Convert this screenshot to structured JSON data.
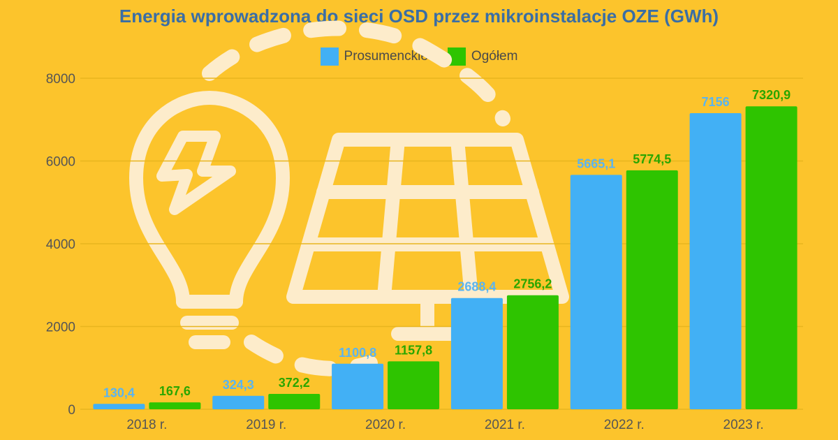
{
  "chart_data": {
    "type": "bar",
    "title": "Energia wprowadzona do sieci OSD przez mikroinstalacje OZE (GWh)",
    "categories": [
      "2018 r.",
      "2019 r.",
      "2020 r.",
      "2021 r.",
      "2022 r.",
      "2023 r."
    ],
    "series": [
      {
        "name": "Prosumenckie",
        "color": "#42b0f5",
        "label_color": "#5ab4f0",
        "values": [
          130.4,
          324.3,
          1100.8,
          2688.4,
          5665.1,
          7156
        ],
        "labels": [
          "130,4",
          "324,3",
          "1100,8",
          "2688,4",
          "5665,1",
          "7156"
        ]
      },
      {
        "name": "Ogółem",
        "color": "#2ec400",
        "label_color": "#2aa600",
        "values": [
          167.6,
          372.2,
          1157.8,
          2756.2,
          5774.5,
          7320.9
        ],
        "labels": [
          "167,6",
          "372,2",
          "1157,8",
          "2756,2",
          "5774,5",
          "7320,9"
        ]
      }
    ],
    "y_ticks": [
      "0",
      "2000",
      "4000",
      "6000",
      "8000"
    ],
    "ylim": [
      0,
      8000
    ],
    "grid": true,
    "legend_position": "top-center"
  },
  "decor": {
    "bulb_icon": "lightbulb-icon",
    "solar_icon": "solar-panel-icon",
    "decor_color": "#fdeccb"
  }
}
